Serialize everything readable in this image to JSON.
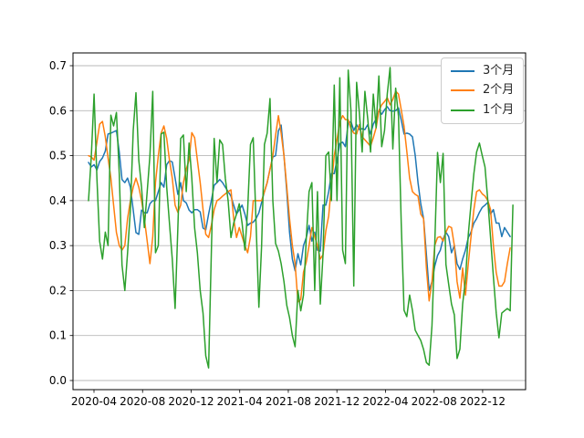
{
  "chart_data": {
    "type": "line",
    "title": "",
    "xlabel": "",
    "ylabel": "",
    "grid": "horizontal-only",
    "legend_position": "upper-right",
    "x_tick_labels": [
      "2020-04",
      "2020-08",
      "2020-12",
      "2021-04",
      "2021-08",
      "2021-12",
      "2022-04",
      "2022-08",
      "2022-12"
    ],
    "y_ticks": [
      0.0,
      0.1,
      0.2,
      0.3,
      0.4,
      0.5,
      0.6,
      0.7
    ],
    "y_tick_labels": [
      "0.0",
      "0.1",
      "0.2",
      "0.3",
      "0.4",
      "0.5",
      "0.6",
      "0.7"
    ],
    "ylim": [
      -0.015,
      0.72
    ],
    "x_unit": "weekly samples from 2020-03 to 2023-02",
    "series": [
      {
        "name": "3个月",
        "color": "#1f77b4",
        "values": [
          0.485,
          0.475,
          0.48,
          0.468,
          0.487,
          0.495,
          0.51,
          0.548,
          0.55,
          0.553,
          0.556,
          0.508,
          0.447,
          0.44,
          0.45,
          0.43,
          0.379,
          0.329,
          0.325,
          0.379,
          0.373,
          0.373,
          0.393,
          0.4,
          0.4,
          0.42,
          0.44,
          0.43,
          0.48,
          0.489,
          0.486,
          0.45,
          0.414,
          0.44,
          0.4,
          0.395,
          0.379,
          0.373,
          0.38,
          0.38,
          0.375,
          0.339,
          0.335,
          0.37,
          0.4,
          0.434,
          0.44,
          0.447,
          0.44,
          0.43,
          0.42,
          0.41,
          0.39,
          0.37,
          0.38,
          0.39,
          0.37,
          0.345,
          0.35,
          0.352,
          0.36,
          0.373,
          0.396,
          0.42,
          0.44,
          0.47,
          0.497,
          0.5,
          0.555,
          0.568,
          0.5,
          0.42,
          0.33,
          0.27,
          0.244,
          0.282,
          0.257,
          0.3,
          0.318,
          0.345,
          0.31,
          0.33,
          0.29,
          0.288,
          0.39,
          0.39,
          0.42,
          0.46,
          0.46,
          0.49,
          0.527,
          0.53,
          0.52,
          0.572,
          0.576,
          0.556,
          0.569,
          0.558,
          0.56,
          0.558,
          0.569,
          0.548,
          0.57,
          0.582,
          0.6,
          0.592,
          0.602,
          0.609,
          0.6,
          0.599,
          0.6,
          0.606,
          0.579,
          0.548,
          0.55,
          0.548,
          0.542,
          0.501,
          0.44,
          0.393,
          0.36,
          0.28,
          0.2,
          0.22,
          0.254,
          0.278,
          0.29,
          0.315,
          0.33,
          0.32,
          0.284,
          0.3,
          0.26,
          0.247,
          0.27,
          0.29,
          0.318,
          0.33,
          0.35,
          0.36,
          0.374,
          0.385,
          0.39,
          0.396,
          0.37,
          0.38,
          0.35,
          0.35,
          0.32,
          0.34,
          0.33,
          0.32,
          null
        ]
      },
      {
        "name": "2个月",
        "color": "#ff7f0e",
        "values": [
          0.5,
          0.497,
          0.49,
          0.53,
          0.57,
          0.576,
          0.542,
          0.495,
          0.45,
          0.39,
          0.329,
          0.3,
          0.29,
          0.3,
          0.36,
          0.4,
          0.43,
          0.45,
          0.43,
          0.4,
          0.36,
          0.31,
          0.26,
          0.32,
          0.44,
          0.5,
          0.55,
          0.566,
          0.538,
          0.49,
          0.45,
          0.39,
          0.374,
          0.39,
          0.44,
          0.47,
          0.49,
          0.551,
          0.54,
          0.49,
          0.44,
          0.38,
          0.325,
          0.318,
          0.345,
          0.38,
          0.4,
          0.404,
          0.41,
          0.415,
          0.42,
          0.424,
          0.36,
          0.318,
          0.34,
          0.32,
          0.3,
          0.284,
          0.32,
          0.4,
          0.4,
          0.4,
          0.4,
          0.42,
          0.44,
          0.47,
          0.5,
          0.545,
          0.589,
          0.55,
          0.5,
          0.43,
          0.36,
          0.3,
          0.26,
          0.175,
          0.18,
          0.241,
          0.264,
          0.3,
          0.34,
          0.32,
          0.3,
          0.27,
          0.28,
          0.333,
          0.366,
          0.434,
          0.5,
          0.535,
          0.575,
          0.589,
          0.58,
          0.58,
          0.56,
          0.55,
          0.548,
          0.569,
          0.542,
          0.535,
          0.528,
          0.521,
          0.54,
          0.562,
          0.6,
          0.613,
          0.62,
          0.629,
          0.613,
          0.625,
          0.643,
          0.637,
          0.602,
          0.565,
          0.51,
          0.45,
          0.42,
          0.414,
          0.41,
          0.37,
          0.36,
          0.25,
          0.177,
          0.22,
          0.3,
          0.318,
          0.32,
          0.31,
          0.33,
          0.343,
          0.34,
          0.3,
          0.22,
          0.183,
          0.25,
          0.19,
          0.26,
          0.32,
          0.38,
          0.42,
          0.424,
          0.415,
          0.41,
          0.4,
          0.38,
          0.3,
          0.24,
          0.21,
          0.21,
          0.22,
          0.26,
          0.295,
          null
        ]
      },
      {
        "name": "1个月",
        "color": "#2ca02c",
        "values": [
          0.4,
          0.5,
          0.637,
          0.45,
          0.31,
          0.27,
          0.33,
          0.3,
          0.59,
          0.566,
          0.596,
          0.46,
          0.257,
          0.2,
          0.284,
          0.379,
          0.556,
          0.64,
          0.49,
          0.43,
          0.34,
          0.42,
          0.5,
          0.643,
          0.284,
          0.3,
          0.548,
          0.552,
          0.43,
          0.35,
          0.27,
          0.16,
          0.339,
          0.538,
          0.546,
          0.42,
          0.528,
          0.45,
          0.339,
          0.284,
          0.2,
          0.15,
          0.055,
          0.028,
          0.284,
          0.538,
          0.44,
          0.535,
          0.525,
          0.45,
          0.4,
          0.318,
          0.35,
          0.37,
          0.393,
          0.35,
          0.29,
          0.38,
          0.525,
          0.54,
          0.35,
          0.163,
          0.3,
          0.525,
          0.55,
          0.627,
          0.4,
          0.305,
          0.288,
          0.26,
          0.22,
          0.167,
          0.14,
          0.1,
          0.075,
          0.2,
          0.155,
          0.19,
          0.318,
          0.42,
          0.44,
          0.2,
          0.42,
          0.17,
          0.28,
          0.5,
          0.508,
          0.4,
          0.657,
          0.4,
          0.673,
          0.29,
          0.26,
          0.69,
          0.6,
          0.21,
          0.663,
          0.596,
          0.508,
          0.643,
          0.582,
          0.508,
          0.637,
          0.562,
          0.677,
          0.52,
          0.556,
          0.637,
          0.696,
          0.515,
          0.65,
          0.588,
          0.35,
          0.156,
          0.142,
          0.19,
          0.156,
          0.112,
          0.1,
          0.089,
          0.069,
          0.04,
          0.034,
          0.122,
          0.3,
          0.507,
          0.44,
          0.505,
          0.258,
          0.214,
          0.17,
          0.146,
          0.049,
          0.07,
          0.17,
          0.224,
          0.325,
          0.393,
          0.46,
          0.508,
          0.528,
          0.5,
          0.475,
          0.4,
          0.318,
          0.231,
          0.15,
          0.095,
          0.15,
          0.155,
          0.16,
          0.155,
          0.39
        ]
      }
    ]
  }
}
